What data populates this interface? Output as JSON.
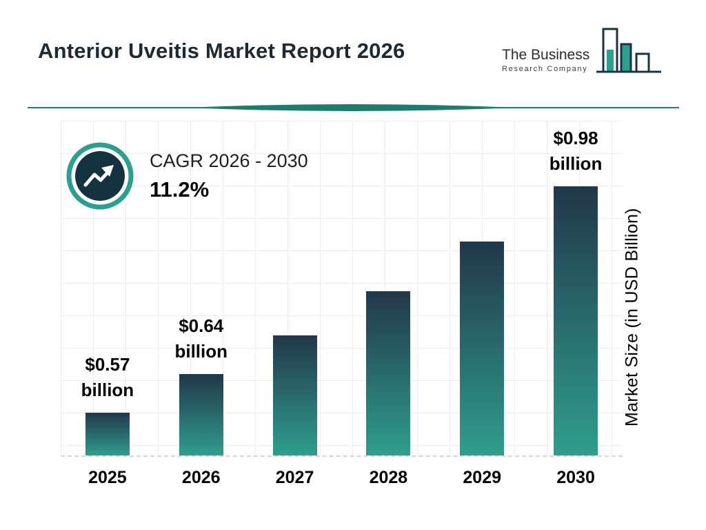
{
  "header": {
    "title": "Anterior Uveitis Market Report 2026"
  },
  "logo": {
    "line1": "The Business",
    "line2": "Research Company"
  },
  "cagr": {
    "label": "CAGR 2026 - 2030",
    "value": "11.2%"
  },
  "chart_data": {
    "type": "bar",
    "title": "Anterior Uveitis Market Report 2026",
    "categories": [
      "2025",
      "2026",
      "2027",
      "2028",
      "2029",
      "2030"
    ],
    "values": [
      0.57,
      0.64,
      0.71,
      0.79,
      0.88,
      0.98
    ],
    "value_labels": [
      {
        "amount": "$0.57",
        "unit": "billion"
      },
      {
        "amount": "$0.64",
        "unit": "billion"
      },
      null,
      null,
      null,
      {
        "amount": "$0.98",
        "unit": "billion"
      }
    ],
    "xlabel": "",
    "ylabel": "Market Size (in USD Billion)",
    "ylim": [
      0.47,
      1.0
    ],
    "grid": true,
    "legend": false,
    "colors": {
      "bar_gradient_top": "#22374a",
      "bar_gradient_bottom": "#2f9e8d",
      "accent_teal": "#2aa08e",
      "dark_navy": "#14323f",
      "divider_teal": "#1b7d6e"
    }
  }
}
